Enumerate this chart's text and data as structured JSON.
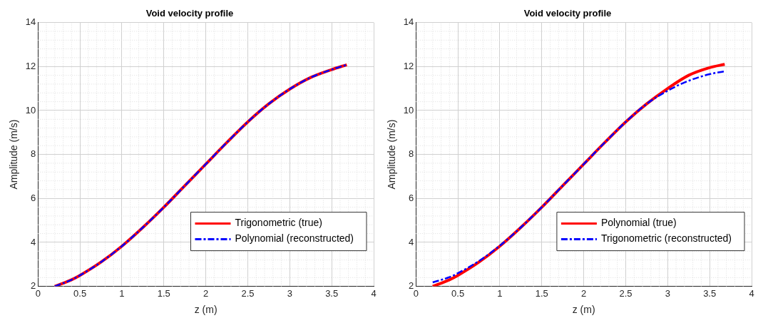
{
  "chart_data": [
    {
      "type": "line",
      "title": "Void velocity profile",
      "xlabel": "z (m)",
      "ylabel": "Amplitude (m/s)",
      "xlim": [
        0,
        4
      ],
      "xticks": [
        0,
        0.5,
        1,
        1.5,
        2,
        2.5,
        3,
        3.5,
        4
      ],
      "ylim": [
        2,
        14
      ],
      "yticks": [
        2,
        4,
        6,
        8,
        10,
        12,
        14
      ],
      "grid": true,
      "legend": "bottom right",
      "x": [
        0.2,
        0.4,
        0.5,
        0.75,
        1.0,
        1.25,
        1.5,
        1.75,
        2.0,
        2.25,
        2.5,
        2.75,
        3.0,
        3.25,
        3.5,
        3.68
      ],
      "series": [
        {
          "name": "Trigonometric (true)",
          "color": "#ff0000",
          "line_style": "solid",
          "values": [
            2.0,
            2.3,
            2.5,
            3.1,
            3.83,
            4.68,
            5.6,
            6.58,
            7.56,
            8.54,
            9.48,
            10.3,
            10.97,
            11.5,
            11.86,
            12.08
          ]
        },
        {
          "name": "Polynomial (reconstructed)",
          "color": "#0000ff",
          "line_style": "dashed",
          "values": [
            2.0,
            2.3,
            2.5,
            3.1,
            3.83,
            4.68,
            5.6,
            6.58,
            7.56,
            8.54,
            9.48,
            10.3,
            10.97,
            11.5,
            11.86,
            12.08
          ]
        }
      ]
    },
    {
      "type": "line",
      "title": "Void velocity profile",
      "xlabel": "z (m)",
      "ylabel": "Amplitude (m/s)",
      "xlim": [
        0,
        4
      ],
      "xticks": [
        0,
        0.5,
        1,
        1.5,
        2,
        2.5,
        3,
        3.5,
        4
      ],
      "ylim": [
        2,
        14
      ],
      "yticks": [
        2,
        4,
        6,
        8,
        10,
        12,
        14
      ],
      "grid": true,
      "legend": "bottom right",
      "x": [
        0.2,
        0.4,
        0.5,
        0.75,
        1.0,
        1.25,
        1.5,
        1.75,
        2.0,
        2.25,
        2.5,
        2.75,
        3.0,
        3.25,
        3.5,
        3.68
      ],
      "series": [
        {
          "name": "Polynomial (true)",
          "color": "#ff0000",
          "line_style": "solid",
          "values": [
            2.0,
            2.3,
            2.5,
            3.1,
            3.83,
            4.68,
            5.6,
            6.58,
            7.56,
            8.54,
            9.48,
            10.3,
            11.0,
            11.6,
            11.95,
            12.1
          ]
        },
        {
          "name": "Trigonometric (reconstructed)",
          "color": "#0000ff",
          "line_style": "dashed",
          "values": [
            2.18,
            2.42,
            2.6,
            3.15,
            3.85,
            4.68,
            5.6,
            6.58,
            7.56,
            8.54,
            9.48,
            10.3,
            10.9,
            11.35,
            11.65,
            11.78
          ]
        }
      ]
    }
  ]
}
